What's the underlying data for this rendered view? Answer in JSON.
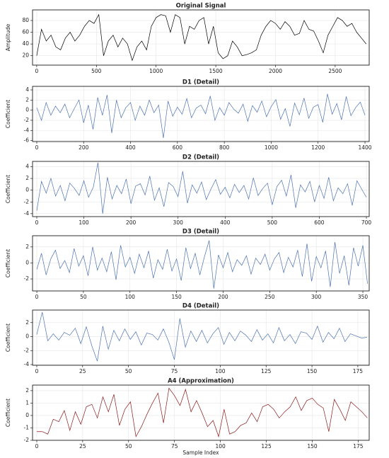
{
  "chart_data": [
    {
      "type": "line",
      "title": "Original Signal",
      "ylabel": "Amplitude",
      "color": "#000000",
      "grid": true,
      "x": [
        0,
        40,
        80,
        120,
        160,
        200,
        240,
        280,
        320,
        360,
        400,
        440,
        480,
        520,
        560,
        600,
        640,
        680,
        720,
        760,
        800,
        840,
        880,
        920,
        960,
        1000,
        1040,
        1080,
        1120,
        1160,
        1200,
        1240,
        1280,
        1320,
        1360,
        1400,
        1440,
        1480,
        1520,
        1560,
        1600,
        1640,
        1680,
        1720,
        1760,
        1800,
        1840,
        1880,
        1920,
        1960,
        2000,
        2040,
        2080,
        2120,
        2160,
        2200,
        2240,
        2280,
        2320,
        2360,
        2400,
        2440,
        2480,
        2520,
        2560,
        2600,
        2640,
        2680,
        2720,
        2760
      ],
      "values": [
        20,
        65,
        45,
        55,
        35,
        30,
        50,
        60,
        45,
        55,
        70,
        80,
        75,
        90,
        20,
        45,
        55,
        35,
        50,
        40,
        12,
        35,
        45,
        30,
        70,
        85,
        90,
        88,
        60,
        90,
        85,
        40,
        70,
        65,
        80,
        85,
        40,
        70,
        25,
        15,
        20,
        45,
        35,
        20,
        22,
        25,
        30,
        55,
        70,
        80,
        75,
        65,
        78,
        70,
        55,
        58,
        80,
        65,
        62,
        45,
        25,
        55,
        70,
        85,
        80,
        70,
        75,
        60,
        50,
        40
      ],
      "xlim": [
        -35,
        2785
      ],
      "ylim": [
        4,
        98
      ],
      "xticks": [
        0,
        500,
        1000,
        1500,
        2000,
        2500
      ],
      "yticks": [
        20,
        40,
        60,
        80
      ]
    },
    {
      "type": "line",
      "title": "D1 (Detail)",
      "ylabel": "Coefficient",
      "color": "#4c72b0",
      "grid": true,
      "x": [
        0,
        20,
        40,
        60,
        80,
        100,
        120,
        140,
        160,
        180,
        200,
        220,
        240,
        260,
        280,
        300,
        320,
        340,
        360,
        380,
        400,
        420,
        440,
        460,
        480,
        500,
        520,
        540,
        560,
        580,
        600,
        620,
        640,
        660,
        680,
        700,
        720,
        740,
        760,
        780,
        800,
        820,
        840,
        860,
        880,
        900,
        920,
        940,
        960,
        980,
        1000,
        1020,
        1040,
        1060,
        1080,
        1100,
        1120,
        1140,
        1160,
        1180,
        1200,
        1220,
        1240,
        1260,
        1280,
        1300,
        1320,
        1340,
        1360,
        1380,
        1400
      ],
      "values": [
        0.5,
        -2,
        1.5,
        -1,
        0.8,
        -0.5,
        1.2,
        -1.5,
        0.3,
        2,
        -2.5,
        1,
        -3.8,
        2.5,
        -1,
        3,
        -4.5,
        2,
        -1.5,
        0.5,
        1.5,
        -2,
        0.8,
        -1,
        2,
        -0.5,
        1,
        -5.5,
        1.8,
        -1.2,
        0.6,
        -0.8,
        2.3,
        -1.5,
        0.4,
        1,
        -0.7,
        2.8,
        -2,
        0.5,
        -1,
        1.5,
        0.2,
        -0.6,
        1.2,
        -2.2,
        0.9,
        -0.4,
        1.8,
        -1.3,
        0.7,
        2.1,
        -1.8,
        0.3,
        -3.2,
        1.4,
        -0.9,
        2.4,
        -1.6,
        0.6,
        1.1,
        -2.4,
        3.2,
        -0.8,
        1.3,
        -1.9,
        2.7,
        -1.1,
        0.5,
        1.6,
        -1
      ],
      "xlim": [
        -18,
        1418
      ],
      "ylim": [
        -6.2,
        4.7
      ],
      "xticks": [
        0,
        200,
        400,
        600,
        800,
        1000,
        1200,
        1400
      ],
      "yticks": [
        -6,
        -4,
        -2,
        0,
        2,
        4
      ]
    },
    {
      "type": "line",
      "title": "D2 (Detail)",
      "ylabel": "Coefficient",
      "color": "#4c72b0",
      "grid": true,
      "x": [
        0,
        10,
        20,
        30,
        40,
        50,
        60,
        70,
        80,
        90,
        100,
        110,
        120,
        130,
        140,
        150,
        160,
        170,
        180,
        190,
        200,
        210,
        220,
        230,
        240,
        250,
        260,
        270,
        280,
        290,
        300,
        310,
        320,
        330,
        340,
        350,
        360,
        370,
        380,
        390,
        400,
        410,
        420,
        430,
        440,
        450,
        460,
        470,
        480,
        490,
        500,
        510,
        520,
        530,
        540,
        550,
        560,
        570,
        580,
        590,
        600,
        610,
        620,
        630,
        640,
        650,
        660,
        670,
        680,
        690,
        700
      ],
      "values": [
        -3.5,
        1.5,
        -0.5,
        2,
        -1,
        0.8,
        -1.8,
        1.2,
        0.3,
        -0.9,
        1.6,
        -1.2,
        0.5,
        4.7,
        -4,
        2.2,
        -1.5,
        0.8,
        -0.6,
        1.9,
        -2.3,
        0.7,
        1.1,
        -0.8,
        2.4,
        -1.7,
        0.4,
        -2.8,
        1.3,
        0.6,
        -1.1,
        3.2,
        -2.2,
        0.9,
        -0.5,
        1.4,
        -1.6,
        0.2,
        1.8,
        -0.7,
        0.5,
        -1.3,
        1,
        -0.4,
        0.8,
        -1.5,
        2.1,
        -0.9,
        0.3,
        1.2,
        -2.5,
        0.6,
        1.7,
        -1,
        2.6,
        -3,
        0.9,
        -0.3,
        1.5,
        -2,
        0.8,
        -1.4,
        2.2,
        -1.8,
        0.4,
        -0.6,
        1.1,
        -2.6,
        1.6,
        0.2,
        -1.2
      ],
      "xlim": [
        -9,
        706
      ],
      "ylim": [
        -4.5,
        4.9
      ],
      "xticks": [
        0,
        100,
        200,
        300,
        400,
        500,
        600,
        700
      ],
      "yticks": [
        -4,
        -2,
        0,
        2,
        4
      ]
    },
    {
      "type": "line",
      "title": "D3 (Detail)",
      "ylabel": "Coefficient",
      "color": "#4c72b0",
      "grid": true,
      "x": [
        0,
        5,
        10,
        15,
        20,
        25,
        30,
        35,
        40,
        45,
        50,
        55,
        60,
        65,
        70,
        75,
        80,
        85,
        90,
        95,
        100,
        105,
        110,
        115,
        120,
        125,
        130,
        135,
        140,
        145,
        150,
        155,
        160,
        165,
        170,
        175,
        180,
        185,
        190,
        195,
        200,
        205,
        210,
        215,
        220,
        225,
        230,
        235,
        240,
        245,
        250,
        255,
        260,
        265,
        270,
        275,
        280,
        285,
        290,
        295,
        300,
        305,
        310,
        315,
        320,
        325,
        330,
        335,
        340,
        345,
        350,
        355
      ],
      "values": [
        -0.8,
        1.2,
        -1.5,
        0.5,
        1.6,
        -0.7,
        0.3,
        -1.2,
        1.8,
        -0.4,
        0.9,
        -1.6,
        2,
        -0.9,
        0.6,
        -1.1,
        1.4,
        -2.1,
        2.2,
        -0.5,
        0.7,
        -1.3,
        1.1,
        -0.6,
        1.5,
        -1.9,
        0.4,
        -0.8,
        1.7,
        -1,
        0.5,
        -2.2,
        1.9,
        -0.7,
        1.2,
        -1.5,
        0.8,
        2.8,
        -3.2,
        1,
        -0.6,
        1.3,
        -1.1,
        0.4,
        -0.3,
        0.9,
        -1.4,
        0.6,
        -0.2,
        1.1,
        -0.9,
        0.5,
        1.3,
        -1.2,
        0.7,
        -0.5,
        1.6,
        -1.7,
        2.4,
        -2.3,
        0.8,
        -0.6,
        1.5,
        -3,
        2.6,
        -1.3,
        0.9,
        -2.8,
        1.9,
        -0.4,
        2.2,
        -2.6
      ],
      "xlim": [
        -4.6,
        356.8
      ],
      "ylim": [
        -3.5,
        3.4
      ],
      "xticks": [
        0,
        50,
        100,
        150,
        200,
        250,
        300,
        350
      ],
      "yticks": [
        -2,
        0,
        2
      ]
    },
    {
      "type": "line",
      "title": "D4 (Detail)",
      "ylabel": "Coefficient",
      "color": "#4c72b0",
      "grid": true,
      "x": [
        0,
        3,
        6,
        9,
        12,
        15,
        18,
        21,
        24,
        27,
        30,
        33,
        36,
        39,
        42,
        45,
        48,
        51,
        54,
        57,
        60,
        63,
        66,
        69,
        72,
        75,
        78,
        81,
        84,
        87,
        90,
        93,
        96,
        99,
        102,
        105,
        108,
        111,
        114,
        117,
        120,
        123,
        126,
        129,
        132,
        135,
        138,
        141,
        144,
        147,
        150,
        153,
        156,
        159,
        162,
        165,
        168,
        171,
        174,
        177,
        180
      ],
      "values": [
        0.3,
        3.5,
        -0.6,
        0.4,
        -0.5,
        0.6,
        0.2,
        1.2,
        -1,
        1.4,
        -1.3,
        -3.5,
        1.5,
        -1.8,
        0.9,
        -0.6,
        1.1,
        -0.4,
        0.7,
        -1.2,
        0.5,
        0.3,
        -0.5,
        1.1,
        -0.8,
        -3.3,
        2.6,
        -1.5,
        0.8,
        -0.7,
        0.9,
        -0.9,
        0.4,
        1.3,
        -1.1,
        0.6,
        -0.6,
        0.8,
        0.2,
        -0.7,
        1,
        -0.5,
        0.4,
        -0.9,
        1.3,
        -0.6,
        0.3,
        -1,
        0.7,
        0.5,
        -0.4,
        1.5,
        -0.8,
        0.6,
        -0.3,
        1.2,
        -0.7,
        0.4,
        0.1,
        -0.2,
        -0.1
      ],
      "xlim": [
        -2.3,
        181.2
      ],
      "ylim": [
        -4.1,
        3.8
      ],
      "xticks": [
        0,
        25,
        50,
        75,
        100,
        125,
        150,
        175
      ],
      "yticks": [
        -4,
        -2,
        0,
        2
      ]
    },
    {
      "type": "line",
      "title": "A4 (Approximation)",
      "ylabel": "Coefficient",
      "xlabel": "Sample Index",
      "color": "#8b1a1a",
      "grid": true,
      "x": [
        0,
        3,
        6,
        9,
        12,
        15,
        18,
        21,
        24,
        27,
        30,
        33,
        36,
        39,
        42,
        45,
        48,
        51,
        54,
        57,
        60,
        63,
        66,
        69,
        72,
        75,
        78,
        81,
        84,
        87,
        90,
        93,
        96,
        99,
        102,
        105,
        108,
        111,
        114,
        117,
        120,
        123,
        126,
        129,
        132,
        135,
        138,
        141,
        144,
        147,
        150,
        153,
        156,
        159,
        162,
        165,
        168,
        171,
        174,
        177,
        180
      ],
      "values": [
        -1.3,
        -1.3,
        -1.5,
        -0.3,
        -0.5,
        0.4,
        -1.2,
        0.3,
        -0.7,
        0.7,
        0.9,
        -0.2,
        1.5,
        0.3,
        1.7,
        -0.8,
        0.5,
        1.1,
        -1.7,
        -0.9,
        0.1,
        1,
        1.8,
        -0.6,
        2.2,
        1.6,
        0.8,
        2.1,
        0.3,
        1.2,
        0.2,
        -0.9,
        -0.4,
        -1.7,
        0.5,
        -1.5,
        -1.3,
        -0.8,
        -0.6,
        0.2,
        -0.5,
        0.7,
        0.9,
        0.5,
        -0.2,
        0.3,
        0.7,
        1.5,
        0.4,
        1.2,
        1.4,
        0.9,
        0.6,
        -1.3,
        1.3,
        0.5,
        -0.4,
        1.1,
        0.7,
        0.3,
        -0.2
      ],
      "xlim": [
        -2.3,
        181
      ],
      "ylim": [
        -2,
        2.45
      ],
      "xticks": [
        0,
        25,
        50,
        75,
        100,
        125,
        150,
        175
      ],
      "yticks": [
        -2,
        -1,
        0,
        1,
        2
      ]
    }
  ]
}
